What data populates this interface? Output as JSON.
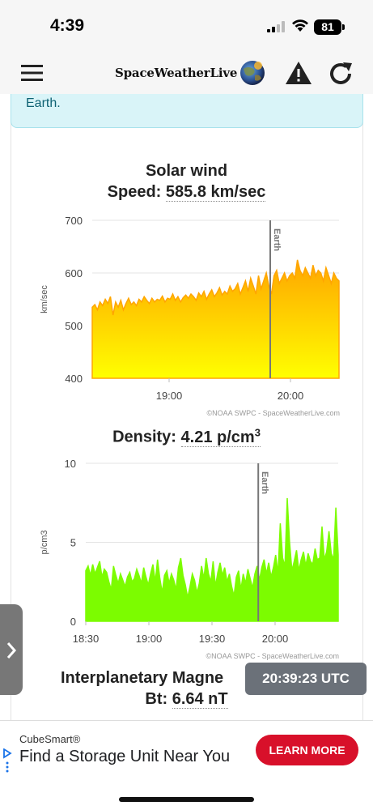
{
  "status_bar": {
    "time": "4:39",
    "battery": "81"
  },
  "header": {
    "logo_text": "SpaceWeatherLive"
  },
  "info_box": {
    "text": "Earth."
  },
  "solar_wind": {
    "title": "Solar wind",
    "speed_label": "Speed:",
    "speed_value": "585.8 km/sec",
    "density_label": "Density:",
    "density_value": "4.21 p/cm",
    "density_superscript": "3"
  },
  "imf": {
    "title": "Interplanetary Magne",
    "bt_label": "Bt:",
    "bt_value": "6.64 nT"
  },
  "utc_clock": "20:39:23 UTC",
  "ad": {
    "brand": "CubeSmart®",
    "headline": "Find a Storage Unit Near You",
    "button": "LEARN MORE"
  },
  "colors": {
    "speed_fill_top": "#ffa500",
    "speed_fill_bottom": "#ffff00",
    "density_fill": "#7cfc00",
    "earth_line": "#777777",
    "ad_button": "#d8102a"
  },
  "chart_data": [
    {
      "type": "area",
      "ylabel": "km/sec",
      "ylim": [
        400,
        700
      ],
      "yticks": [
        400,
        500,
        600,
        700
      ],
      "xticks": [
        "19:00",
        "20:00"
      ],
      "marker": "Earth",
      "credit": "©NOAA SWPC - SpaceWeatherLive.com",
      "x_start": "18:22",
      "x_end": "20:24",
      "marker_x": "19:50",
      "xtick_positions": [
        "19:00",
        "20:00"
      ],
      "series": [
        {
          "values": [
            535,
            540,
            530,
            545,
            538,
            550,
            542,
            555,
            520,
            545,
            535,
            548,
            530,
            542,
            552,
            540,
            545,
            538,
            550,
            545,
            555,
            548,
            542,
            552,
            545,
            550,
            548,
            556,
            545,
            552,
            550,
            560,
            548,
            555,
            545,
            553,
            558,
            552,
            560,
            555,
            548,
            562,
            555,
            565,
            550,
            560,
            568,
            555,
            562,
            572,
            558,
            565,
            560,
            575,
            565,
            570,
            580,
            560,
            572,
            585,
            565,
            590,
            575,
            560,
            595,
            570,
            585,
            600,
            575,
            560,
            595,
            605,
            580,
            590,
            600,
            585,
            595,
            600,
            590,
            625,
            605,
            595,
            610,
            600,
            590,
            615,
            595,
            605,
            600,
            585,
            610,
            595,
            580,
            600,
            590,
            585
          ]
        }
      ]
    },
    {
      "type": "area",
      "ylabel": "p/cm3",
      "ylim": [
        0,
        10
      ],
      "yticks": [
        0,
        5,
        10
      ],
      "xticks": [
        "18:30",
        "19:00",
        "19:30",
        "20:00"
      ],
      "marker": "Earth",
      "credit": "©NOAA SWPC - SpaceWeatherLive.com",
      "x_start": "18:30",
      "x_end": "20:30",
      "marker_x": "19:52",
      "series": [
        {
          "values": [
            3.2,
            3.5,
            2.9,
            3.6,
            3.0,
            3.4,
            3.8,
            2.8,
            3.3,
            3.1,
            2.5,
            2.0,
            3.5,
            2.9,
            2.4,
            3.0,
            2.6,
            2.2,
            2.8,
            3.1,
            2.5,
            2.7,
            3.3,
            2.9,
            2.4,
            3.4,
            2.8,
            2.3,
            3.0,
            3.6,
            2.5,
            3.9,
            2.7,
            1.8,
            2.9,
            3.2,
            2.4,
            3.0,
            2.6,
            2.0,
            3.4,
            4.0,
            2.9,
            2.3,
            1.5,
            2.2,
            3.0,
            2.6,
            1.8,
            2.4,
            3.5,
            2.7,
            4.0,
            3.0,
            2.5,
            3.8,
            2.2,
            3.1,
            3.7,
            2.9,
            3.4,
            2.5,
            3.0,
            2.2,
            1.6,
            2.8,
            3.2,
            2.0,
            3.0,
            2.4,
            3.3,
            2.7,
            2.1,
            3.0,
            3.5,
            2.6,
            3.4,
            3.9,
            3.0,
            3.7,
            2.8,
            3.4,
            4.2,
            3.0,
            6.2,
            4.0,
            3.5,
            7.8,
            5.0,
            3.2,
            3.8,
            4.5,
            3.2,
            3.9,
            4.4,
            3.5,
            4.3,
            3.8,
            3.6,
            4.6,
            3.9,
            4.0,
            6.0,
            3.9,
            4.4,
            5.7,
            4.3,
            3.9,
            7.2,
            4.2
          ]
        }
      ]
    }
  ]
}
